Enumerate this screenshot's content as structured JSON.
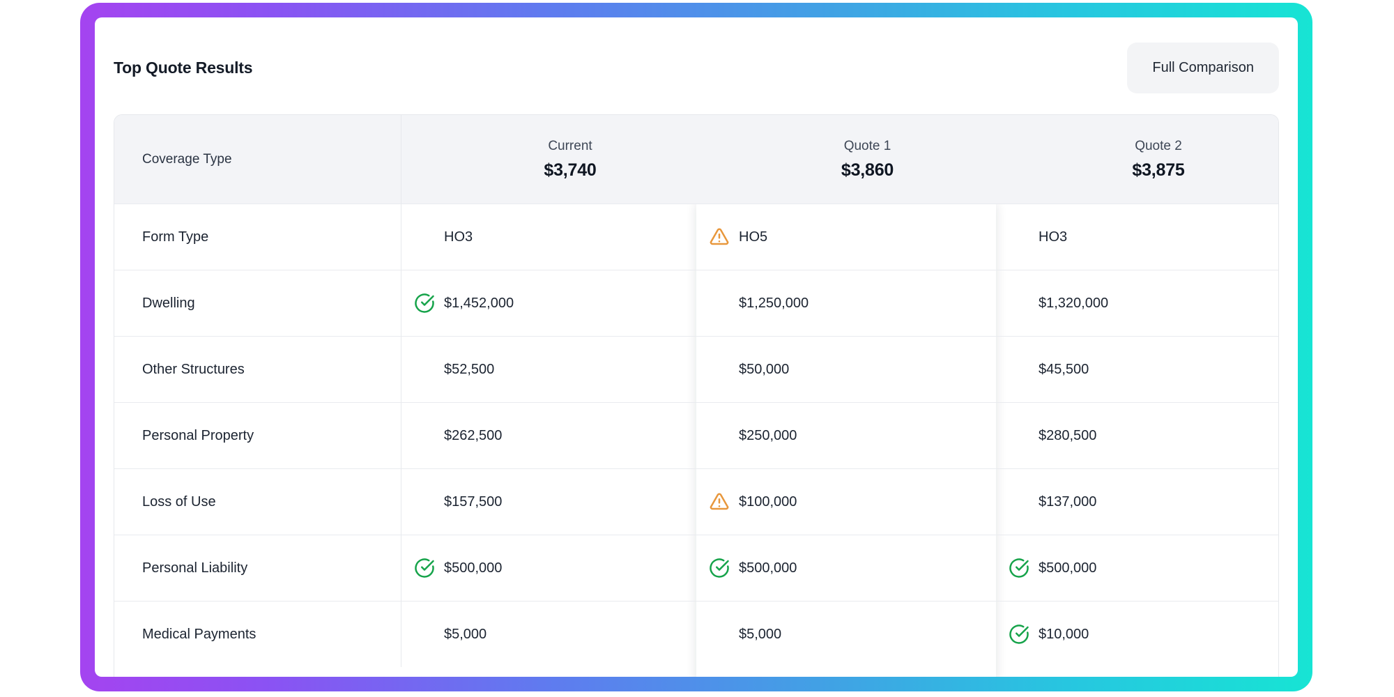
{
  "header": {
    "title": "Top Quote Results",
    "full_comparison_label": "Full Comparison"
  },
  "table": {
    "corner_header": "Coverage Type",
    "columns": [
      {
        "label": "Current",
        "premium": "$3,740",
        "highlighted": false
      },
      {
        "label": "Quote 1",
        "premium": "$3,860",
        "highlighted": true
      },
      {
        "label": "Quote 2",
        "premium": "$3,875",
        "highlighted": false
      }
    ],
    "rows": [
      {
        "label": "Form Type",
        "cells": [
          {
            "text": "HO3",
            "icon": "none"
          },
          {
            "text": "HO5",
            "icon": "warning"
          },
          {
            "text": "HO3",
            "icon": "none"
          }
        ]
      },
      {
        "label": "Dwelling",
        "cells": [
          {
            "text": "$1,452,000",
            "icon": "check"
          },
          {
            "text": "$1,250,000",
            "icon": "none"
          },
          {
            "text": "$1,320,000",
            "icon": "none"
          }
        ]
      },
      {
        "label": "Other Structures",
        "cells": [
          {
            "text": "$52,500",
            "icon": "none"
          },
          {
            "text": "$50,000",
            "icon": "none"
          },
          {
            "text": "$45,500",
            "icon": "none"
          }
        ]
      },
      {
        "label": "Personal Property",
        "cells": [
          {
            "text": "$262,500",
            "icon": "none"
          },
          {
            "text": "$250,000",
            "icon": "none"
          },
          {
            "text": "$280,500",
            "icon": "none"
          }
        ]
      },
      {
        "label": "Loss of Use",
        "cells": [
          {
            "text": "$157,500",
            "icon": "none"
          },
          {
            "text": "$100,000",
            "icon": "warning"
          },
          {
            "text": "$137,000",
            "icon": "none"
          }
        ]
      },
      {
        "label": "Personal Liability",
        "cells": [
          {
            "text": "$500,000",
            "icon": "check"
          },
          {
            "text": "$500,000",
            "icon": "check"
          },
          {
            "text": "$500,000",
            "icon": "check"
          }
        ]
      },
      {
        "label": "Medical Payments",
        "cells": [
          {
            "text": "$5,000",
            "icon": "none"
          },
          {
            "text": "$5,000",
            "icon": "none"
          },
          {
            "text": "$10,000",
            "icon": "check"
          }
        ]
      }
    ]
  },
  "icons": {
    "check": "check-circle-icon",
    "warning": "alert-triangle-icon"
  },
  "colors": {
    "check_green": "#16a34a",
    "warning_orange": "#e8973c",
    "gradient_start": "#a444f0",
    "gradient_end": "#17e4d4",
    "header_bg": "#f3f4f7",
    "row_border": "#e9ebef"
  }
}
